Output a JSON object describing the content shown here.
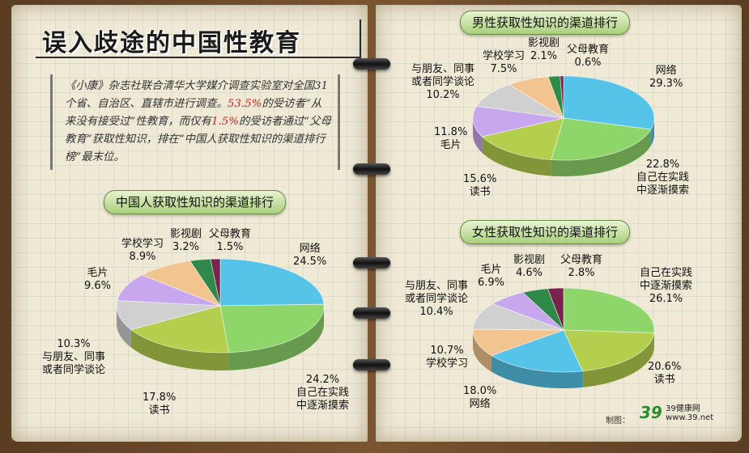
{
  "title": "误入歧途的中国性教育",
  "intro": {
    "part1": "《小康》杂志社联合清华大学媒介调查实验室对全国31个省、自治区、直辖市进行调查。",
    "pct1": "53.5%",
    "part2": "的受访者“从来没有接受过”性教育，而仅有",
    "pct2": "1.5%",
    "part3": "的受访者通过“父母教育”获取性知识，排在“中国人获取性知识的渠道排行榜”最末位。"
  },
  "credit": "制图：",
  "logo": {
    "mark": "39",
    "name": "39健康网",
    "url": "www.39.net"
  },
  "colors": {
    "internet": "#56c4e8",
    "practice": "#8fd66a",
    "books": "#b4cf4e",
    "pulp": "#c9a7ee",
    "friends": "#d0d0d0",
    "school": "#f2c590",
    "tv": "#2f8a4a",
    "parents": "#7a2350"
  },
  "chart_data": [
    {
      "type": "pie",
      "title": "中国人获取性知识的渠道排行",
      "slices": [
        {
          "label": "网络",
          "value": 24.5
        },
        {
          "label": "自己在实践中逐渐摸索",
          "value": 24.2
        },
        {
          "label": "读书",
          "value": 17.8
        },
        {
          "label": "与朋友、同事或者同学谈论",
          "value": 10.3
        },
        {
          "label": "毛片",
          "value": 9.6
        },
        {
          "label": "学校学习",
          "value": 8.9
        },
        {
          "label": "影视剧",
          "value": 3.2
        },
        {
          "label": "父母教育",
          "value": 1.5
        }
      ]
    },
    {
      "type": "pie",
      "title": "男性获取性知识的渠道排行",
      "slices": [
        {
          "label": "网络",
          "value": 29.3
        },
        {
          "label": "自己在实践中逐渐摸索",
          "value": 22.8
        },
        {
          "label": "读书",
          "value": 15.6
        },
        {
          "label": "毛片",
          "value": 11.8
        },
        {
          "label": "与朋友、同事或者同学谈论",
          "value": 10.2
        },
        {
          "label": "学校学习",
          "value": 7.5
        },
        {
          "label": "影视剧",
          "value": 2.1
        },
        {
          "label": "父母教育",
          "value": 0.6
        }
      ]
    },
    {
      "type": "pie",
      "title": "女性获取性知识的渠道排行",
      "slices": [
        {
          "label": "自己在实践中逐渐摸索",
          "value": 26.1
        },
        {
          "label": "读书",
          "value": 20.6
        },
        {
          "label": "网络",
          "value": 18.0
        },
        {
          "label": "学校学习",
          "value": 10.7
        },
        {
          "label": "与朋友、同事或者同学谈论",
          "value": 10.4
        },
        {
          "label": "毛片",
          "value": 6.9
        },
        {
          "label": "影视剧",
          "value": 4.6
        },
        {
          "label": "父母教育",
          "value": 2.8
        }
      ]
    }
  ],
  "labels": {
    "china": {
      "internet": {
        "name": "网络",
        "pct": "24.5%"
      },
      "practice": {
        "name1": "自己在实践",
        "name2": "中逐渐摸索",
        "pct": "24.2%"
      },
      "books": {
        "name": "读书",
        "pct": "17.8%"
      },
      "friends": {
        "name1": "与朋友、同事",
        "name2": "或者同学谈论",
        "pct": "10.3%"
      },
      "pulp": {
        "name": "毛片",
        "pct": "9.6%"
      },
      "school": {
        "name": "学校学习",
        "pct": "8.9%"
      },
      "tv": {
        "name": "影视剧",
        "pct": "3.2%"
      },
      "parents": {
        "name": "父母教育",
        "pct": "1.5%"
      }
    },
    "male": {
      "internet": {
        "name": "网络",
        "pct": "29.3%"
      },
      "practice": {
        "name1": "自己在实践",
        "name2": "中逐渐摸索",
        "pct": "22.8%"
      },
      "books": {
        "name": "读书",
        "pct": "15.6%"
      },
      "pulp": {
        "name": "毛片",
        "pct": "11.8%"
      },
      "friends": {
        "name1": "与朋友、同事",
        "name2": "或者同学谈论",
        "pct": "10.2%"
      },
      "school": {
        "name": "学校学习",
        "pct": "7.5%"
      },
      "tv": {
        "name": "影视剧",
        "pct": "2.1%"
      },
      "parents": {
        "name": "父母教育",
        "pct": "0.6%"
      }
    },
    "female": {
      "practice": {
        "name1": "自己在实践",
        "name2": "中逐渐摸索",
        "pct": "26.1%"
      },
      "books": {
        "name": "读书",
        "pct": "20.6%"
      },
      "internet": {
        "name": "网络",
        "pct": "18.0%"
      },
      "school": {
        "name": "学校学习",
        "pct": "10.7%"
      },
      "friends": {
        "name1": "与朋友、同事",
        "name2": "或者同学谈论",
        "pct": "10.4%"
      },
      "pulp": {
        "name": "毛片",
        "pct": "6.9%"
      },
      "tv": {
        "name": "影视剧",
        "pct": "4.6%"
      },
      "parents": {
        "name": "父母教育",
        "pct": "2.8%"
      }
    }
  }
}
